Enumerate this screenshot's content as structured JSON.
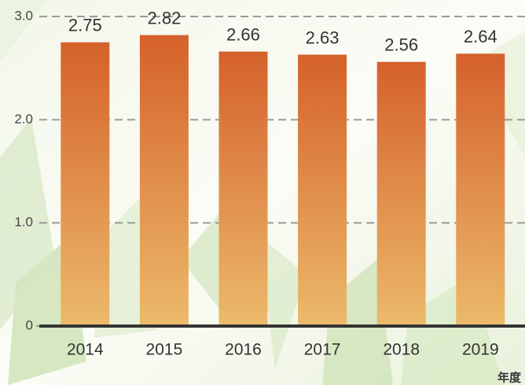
{
  "chart_data": {
    "type": "bar",
    "x_label": "年度",
    "categories": [
      "2014",
      "2015",
      "2016",
      "2017",
      "2018",
      "2019"
    ],
    "values": [
      2.75,
      2.82,
      2.66,
      2.63,
      2.56,
      2.64
    ],
    "gradient": [
      "#d5612b",
      "#ecba6b"
    ],
    "ylim": [
      0,
      3
    ],
    "yticks": [
      0,
      {
        "value": 1,
        "label": "1.0"
      },
      {
        "value": 2,
        "label": "2.0"
      },
      {
        "value": 3,
        "label": "3.0"
      }
    ],
    "grid": true
  }
}
